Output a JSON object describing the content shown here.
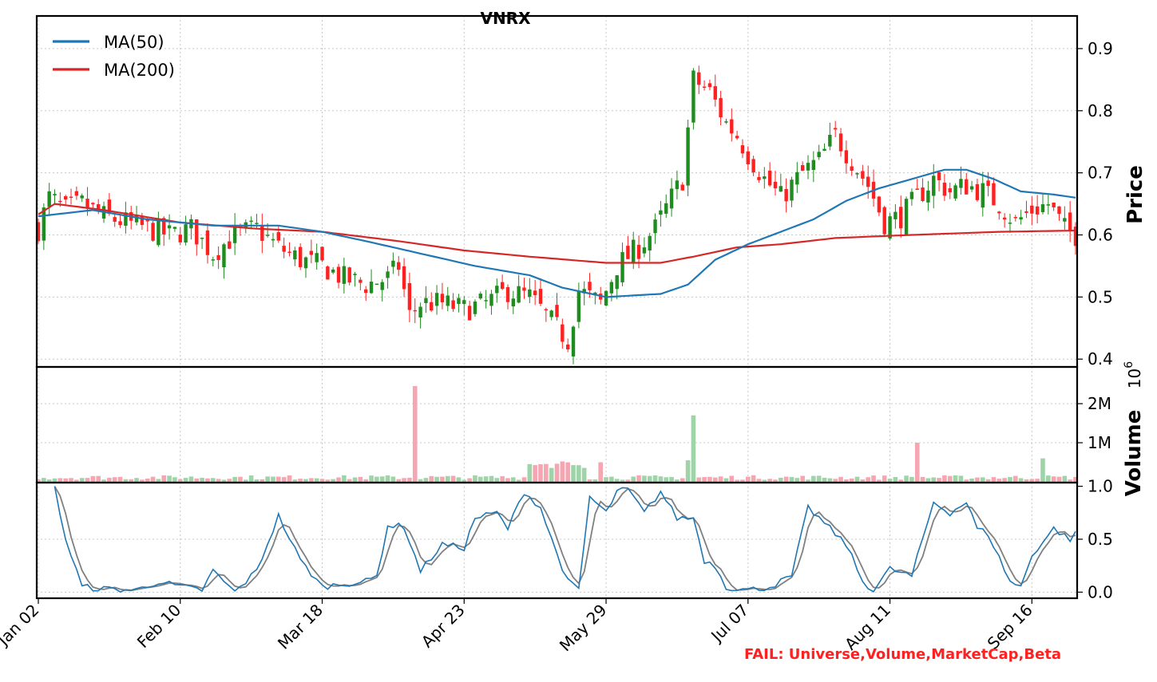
{
  "chart_data": [
    {
      "type": "candlestick",
      "title": "VNRX",
      "ylabel": "Price",
      "ylim": [
        0.39,
        0.95
      ],
      "y_ticks": [
        "0.4",
        "0.5",
        "0.6",
        "0.7",
        "0.8",
        "0.9"
      ],
      "x_tick_labels": [
        "Jan 02",
        "Feb 10",
        "Mar 18",
        "Apr 23",
        "May 29",
        "Jul 07",
        "Aug 11",
        "Sep 16"
      ],
      "x_tick_index": [
        0,
        26,
        52,
        78,
        104,
        130,
        156,
        182
      ],
      "legend": {
        "position": "top-left",
        "entries": [
          "MA(50)",
          "MA(200)"
        ]
      },
      "up_color": "#1f8c1f",
      "down_color": "#ff2020",
      "ma50_color": "#1f77b4",
      "ma200_color": "#d62728",
      "close_anchors": [
        [
          0,
          0.61
        ],
        [
          2,
          0.66
        ],
        [
          5,
          0.64
        ],
        [
          8,
          0.65
        ],
        [
          12,
          0.63
        ],
        [
          16,
          0.62
        ],
        [
          20,
          0.61
        ],
        [
          24,
          0.6
        ],
        [
          28,
          0.61
        ],
        [
          32,
          0.57
        ],
        [
          36,
          0.6
        ],
        [
          40,
          0.61
        ],
        [
          44,
          0.58
        ],
        [
          48,
          0.56
        ],
        [
          52,
          0.55
        ],
        [
          56,
          0.53
        ],
        [
          60,
          0.52
        ],
        [
          64,
          0.53
        ],
        [
          66,
          0.55
        ],
        [
          68,
          0.47
        ],
        [
          70,
          0.49
        ],
        [
          74,
          0.49
        ],
        [
          78,
          0.48
        ],
        [
          82,
          0.49
        ],
        [
          86,
          0.51
        ],
        [
          90,
          0.5
        ],
        [
          94,
          0.46
        ],
        [
          97,
          0.43
        ],
        [
          99,
          0.51
        ],
        [
          103,
          0.49
        ],
        [
          106,
          0.55
        ],
        [
          110,
          0.58
        ],
        [
          113,
          0.61
        ],
        [
          116,
          0.66
        ],
        [
          118,
          0.69
        ],
        [
          120,
          0.85
        ],
        [
          123,
          0.83
        ],
        [
          126,
          0.78
        ],
        [
          128,
          0.76
        ],
        [
          130,
          0.73
        ],
        [
          133,
          0.69
        ],
        [
          136,
          0.66
        ],
        [
          140,
          0.7
        ],
        [
          143,
          0.72
        ],
        [
          146,
          0.76
        ],
        [
          149,
          0.72
        ],
        [
          152,
          0.68
        ],
        [
          155,
          0.62
        ],
        [
          158,
          0.63
        ],
        [
          161,
          0.66
        ],
        [
          164,
          0.69
        ],
        [
          167,
          0.67
        ],
        [
          170,
          0.68
        ],
        [
          173,
          0.67
        ],
        [
          176,
          0.65
        ],
        [
          179,
          0.62
        ],
        [
          182,
          0.64
        ],
        [
          185,
          0.65
        ],
        [
          188,
          0.61
        ],
        [
          190,
          0.6
        ]
      ],
      "ma50": [
        [
          0,
          0.63
        ],
        [
          10,
          0.64
        ],
        [
          20,
          0.625
        ],
        [
          32,
          0.615
        ],
        [
          44,
          0.615
        ],
        [
          52,
          0.605
        ],
        [
          60,
          0.59
        ],
        [
          70,
          0.57
        ],
        [
          80,
          0.55
        ],
        [
          90,
          0.535
        ],
        [
          96,
          0.515
        ],
        [
          104,
          0.5
        ],
        [
          114,
          0.505
        ],
        [
          119,
          0.52
        ],
        [
          124,
          0.56
        ],
        [
          130,
          0.585
        ],
        [
          136,
          0.605
        ],
        [
          142,
          0.625
        ],
        [
          148,
          0.655
        ],
        [
          154,
          0.675
        ],
        [
          160,
          0.69
        ],
        [
          166,
          0.705
        ],
        [
          170,
          0.705
        ],
        [
          175,
          0.69
        ],
        [
          180,
          0.67
        ],
        [
          186,
          0.665
        ],
        [
          190,
          0.66
        ]
      ],
      "ma200": [
        [
          0,
          0.633
        ],
        [
          3,
          0.65
        ],
        [
          12,
          0.64
        ],
        [
          26,
          0.62
        ],
        [
          40,
          0.61
        ],
        [
          52,
          0.605
        ],
        [
          66,
          0.59
        ],
        [
          78,
          0.575
        ],
        [
          90,
          0.565
        ],
        [
          104,
          0.555
        ],
        [
          114,
          0.555
        ],
        [
          120,
          0.565
        ],
        [
          128,
          0.58
        ],
        [
          136,
          0.585
        ],
        [
          146,
          0.595
        ],
        [
          160,
          0.6
        ],
        [
          176,
          0.605
        ],
        [
          190,
          0.607
        ]
      ],
      "n_days": 191
    },
    {
      "type": "bar",
      "ylabel": "Volume",
      "y_exponent_label": "1e6",
      "ylim": [
        0,
        2.9
      ],
      "y_ticks": [
        "1M",
        "2M"
      ],
      "spikes": [
        {
          "index": 69,
          "value": 2.45
        },
        {
          "index": 120,
          "value": 1.7
        },
        {
          "index": 161,
          "value": 1.0
        },
        {
          "index": 120,
          "value": 1.7
        },
        {
          "index": 103,
          "value": 0.5
        },
        {
          "index": 119,
          "value": 0.55
        },
        {
          "index": 184,
          "value": 0.6
        }
      ],
      "up_color": "#9fd4a8",
      "down_color": "#f6a6b1"
    },
    {
      "type": "line",
      "ylim": [
        -0.05,
        1.02
      ],
      "y_ticks": [
        "0.0",
        "0.5",
        "1.0"
      ],
      "fast_color": "#1f77b4",
      "slow_color": "#808080",
      "fast_anchors": [
        [
          3,
          1.0
        ],
        [
          5,
          0.5
        ],
        [
          8,
          0.05
        ],
        [
          12,
          0.03
        ],
        [
          18,
          0.02
        ],
        [
          22,
          0.1
        ],
        [
          26,
          0.05
        ],
        [
          30,
          0.02
        ],
        [
          32,
          0.2
        ],
        [
          36,
          0.0
        ],
        [
          40,
          0.2
        ],
        [
          44,
          0.72
        ],
        [
          48,
          0.3
        ],
        [
          52,
          0.05
        ],
        [
          56,
          0.08
        ],
        [
          60,
          0.1
        ],
        [
          62,
          0.15
        ],
        [
          64,
          0.63
        ],
        [
          67,
          0.62
        ],
        [
          70,
          0.2
        ],
        [
          74,
          0.45
        ],
        [
          78,
          0.42
        ],
        [
          80,
          0.7
        ],
        [
          84,
          0.75
        ],
        [
          86,
          0.6
        ],
        [
          89,
          0.95
        ],
        [
          92,
          0.8
        ],
        [
          94,
          0.5
        ],
        [
          97,
          0.1
        ],
        [
          99,
          0.02
        ],
        [
          101,
          0.9
        ],
        [
          104,
          0.75
        ],
        [
          106,
          0.95
        ],
        [
          108,
          0.97
        ],
        [
          111,
          0.75
        ],
        [
          114,
          0.95
        ],
        [
          117,
          0.7
        ],
        [
          120,
          0.7
        ],
        [
          122,
          0.3
        ],
        [
          124,
          0.25
        ],
        [
          126,
          0.05
        ],
        [
          130,
          0.02
        ],
        [
          134,
          0.05
        ],
        [
          138,
          0.15
        ],
        [
          141,
          0.8
        ],
        [
          144,
          0.65
        ],
        [
          148,
          0.45
        ],
        [
          151,
          0.1
        ],
        [
          153,
          0.02
        ],
        [
          156,
          0.22
        ],
        [
          160,
          0.15
        ],
        [
          164,
          0.85
        ],
        [
          167,
          0.75
        ],
        [
          170,
          0.85
        ],
        [
          172,
          0.6
        ],
        [
          174,
          0.55
        ],
        [
          178,
          0.1
        ],
        [
          180,
          0.05
        ],
        [
          182,
          0.35
        ],
        [
          186,
          0.6
        ],
        [
          189,
          0.5
        ],
        [
          191,
          0.6
        ]
      ],
      "n_days": 191
    }
  ],
  "watermark": {
    "text": "FAIL: Universe,Volume,MarketCap,Beta"
  },
  "title": "VNRX"
}
